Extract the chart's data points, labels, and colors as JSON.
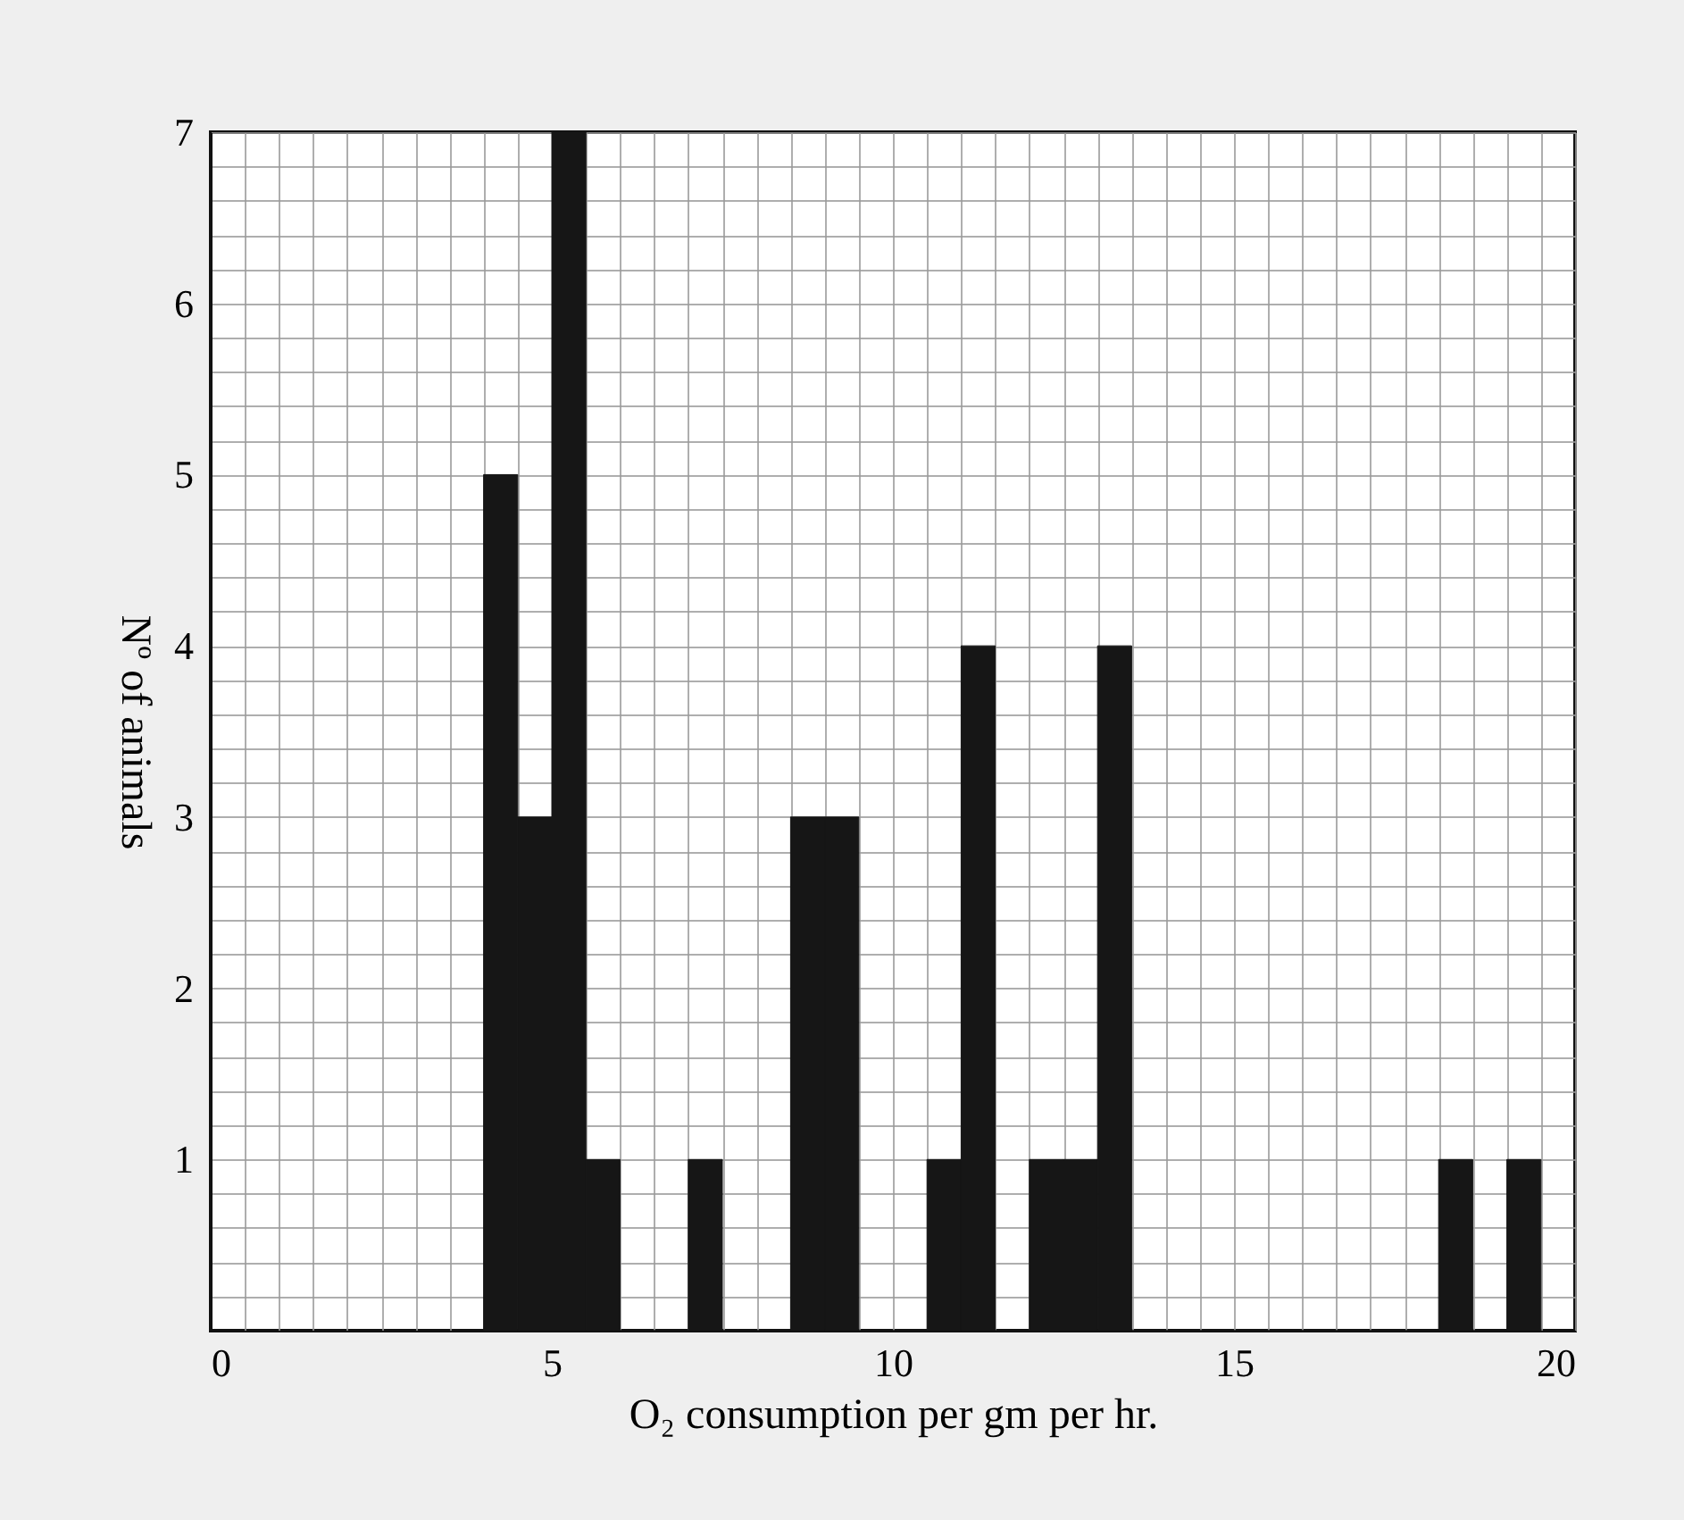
{
  "chart_data": {
    "type": "histogram",
    "xlabel": "O₂ consumption per gm per hr.",
    "ylabel": "Nº of animals",
    "bins": [
      4,
      4.5,
      5,
      5.5,
      6,
      7,
      7.5,
      8.5,
      9,
      9.5,
      10.5,
      11,
      11.5,
      12,
      12.5,
      13,
      13.5,
      18,
      18.5,
      19,
      19.5
    ],
    "values": [
      5,
      3,
      7,
      1,
      0,
      1,
      0,
      3,
      3,
      0,
      1,
      4,
      0,
      1,
      1,
      4,
      0,
      1,
      0,
      1
    ],
    "color": "#161616",
    "xlim": [
      0,
      20
    ],
    "xticks": [
      0,
      {
        "value": 0.5,
        "label": null
      },
      {
        "value": 1,
        "label": null
      },
      {
        "value": 1.5,
        "label": null
      },
      {
        "value": 2,
        "label": null
      },
      {
        "value": 2.5,
        "label": null
      },
      {
        "value": 3,
        "label": null
      },
      {
        "value": 3.5,
        "label": null
      },
      {
        "value": 4,
        "label": null
      },
      {
        "value": 4.5,
        "label": null
      },
      5,
      {
        "value": 5.5,
        "label": null
      },
      {
        "value": 6,
        "label": null
      },
      {
        "value": 6.5,
        "label": null
      },
      {
        "value": 7,
        "label": null
      },
      {
        "value": 7.5,
        "label": null
      },
      {
        "value": 8,
        "label": null
      },
      {
        "value": 8.5,
        "label": null
      },
      {
        "value": 9,
        "label": null
      },
      {
        "value": 9.5,
        "label": null
      },
      10,
      {
        "value": 10.5,
        "label": null
      },
      {
        "value": 11,
        "label": null
      },
      {
        "value": 11.5,
        "label": null
      },
      {
        "value": 12,
        "label": null
      },
      {
        "value": 12.5,
        "label": null
      },
      {
        "value": 13,
        "label": null
      },
      {
        "value": 13.5,
        "label": null
      },
      {
        "value": 14,
        "label": null
      },
      {
        "value": 14.5,
        "label": null
      },
      15,
      {
        "value": 15.5,
        "label": null
      },
      {
        "value": 16,
        "label": null
      },
      {
        "value": 16.5,
        "label": null
      },
      {
        "value": 17,
        "label": null
      },
      {
        "value": 17.5,
        "label": null
      },
      {
        "value": 18,
        "label": null
      },
      {
        "value": 18.5,
        "label": null
      },
      {
        "value": 19,
        "label": null
      },
      {
        "value": 19.5,
        "label": null
      },
      20
    ],
    "ylim": [
      0,
      7
    ],
    "yticks": [
      {
        "value": 0,
        "label": null
      },
      {
        "value": 0.2,
        "label": null
      },
      {
        "value": 0.4,
        "label": null
      },
      {
        "value": 0.6,
        "label": null
      },
      {
        "value": 0.8,
        "label": null
      },
      1,
      {
        "value": 1.2,
        "label": null
      },
      {
        "value": 1.4,
        "label": null
      },
      {
        "value": 1.6,
        "label": null
      },
      {
        "value": 1.8,
        "label": null
      },
      2,
      {
        "value": 2.2,
        "label": null
      },
      {
        "value": 2.4,
        "label": null
      },
      {
        "value": 2.6,
        "label": null
      },
      {
        "value": 2.8,
        "label": null
      },
      3,
      {
        "value": 3.2,
        "label": null
      },
      {
        "value": 3.4,
        "label": null
      },
      {
        "value": 3.6,
        "label": null
      },
      {
        "value": 3.8,
        "label": null
      },
      4,
      {
        "value": 4.2,
        "label": null
      },
      {
        "value": 4.4,
        "label": null
      },
      {
        "value": 4.6,
        "label": null
      },
      {
        "value": 4.8,
        "label": null
      },
      5,
      {
        "value": 5.2,
        "label": null
      },
      {
        "value": 5.4,
        "label": null
      },
      {
        "value": 5.6,
        "label": null
      },
      {
        "value": 5.8,
        "label": null
      },
      6,
      {
        "value": 6.2,
        "label": null
      },
      {
        "value": 6.4,
        "label": null
      },
      {
        "value": 6.6,
        "label": null
      },
      {
        "value": 6.8,
        "label": null
      },
      7
    ],
    "grid": true
  }
}
